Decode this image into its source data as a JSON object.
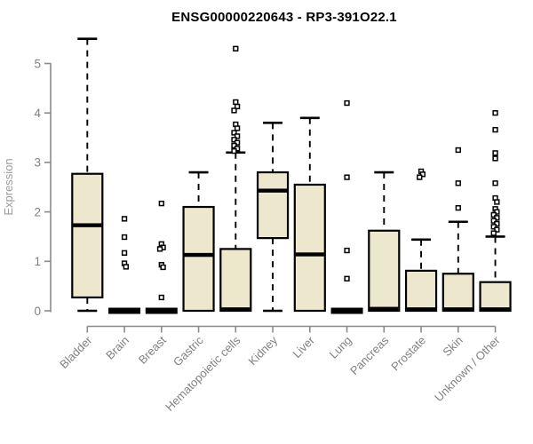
{
  "title": "ENSG00000220643 - RP3-391O22.1",
  "colors": {
    "box_fill": "#EDE7CE",
    "box_border": "#000000",
    "median": "#000000",
    "whisker": "#000000",
    "outlier_stroke": "#000000",
    "outlier_fill": "#FFFFFF",
    "axis": "#8A8A8A",
    "tick_label": "#808080",
    "axis_title": "#9A9A9A",
    "title": "#000000",
    "background": "#FFFFFF"
  },
  "chart_data": {
    "type": "boxplot",
    "title": "ENSG00000220643 - RP3-391O22.1",
    "xlabel": "",
    "ylabel": "Expression",
    "ylim": [
      0,
      5.6
    ],
    "yticks": [
      0,
      1,
      2,
      3,
      4,
      5
    ],
    "grid": false,
    "legend": null,
    "categories": [
      "Bladder",
      "Brain",
      "Breast",
      "Gastric",
      "Hematopoietic cells",
      "Kidney",
      "Liver",
      "Lung",
      "Pancreas",
      "Prostate",
      "Skin",
      "Unknown / Other"
    ],
    "series": [
      {
        "category": "Bladder",
        "whisker_low": 0,
        "q1": 0.27,
        "median": 1.73,
        "q3": 2.77,
        "whisker_high": 5.5,
        "outliers": []
      },
      {
        "category": "Brain",
        "whisker_low": 0,
        "q1": 0,
        "median": 0,
        "q3": 0,
        "whisker_high": 0,
        "outliers": [
          1.86,
          1.49,
          1.17,
          0.96,
          0.89
        ]
      },
      {
        "category": "Breast",
        "whisker_low": 0,
        "q1": 0,
        "median": 0,
        "q3": 0,
        "whisker_high": 0,
        "outliers": [
          2.17,
          1.35,
          1.28,
          1.25,
          0.93,
          0.88,
          0.27
        ]
      },
      {
        "category": "Gastric",
        "whisker_low": 0,
        "q1": 0,
        "median": 1.13,
        "q3": 2.1,
        "whisker_high": 2.8,
        "outliers": []
      },
      {
        "category": "Hematopoietic cells",
        "whisker_low": 0,
        "q1": 0,
        "median": 0.03,
        "q3": 1.25,
        "whisker_high": 3.2,
        "outliers": [
          5.3,
          4.22,
          4.13,
          4.05,
          3.77,
          3.69,
          3.6,
          3.53,
          3.46,
          3.4,
          3.34,
          3.28,
          3.23
        ]
      },
      {
        "category": "Kidney",
        "whisker_low": 0,
        "q1": 1.47,
        "median": 2.43,
        "q3": 2.8,
        "whisker_high": 3.8,
        "outliers": []
      },
      {
        "category": "Liver",
        "whisker_low": 0,
        "q1": 0,
        "median": 1.14,
        "q3": 2.55,
        "whisker_high": 3.9,
        "outliers": []
      },
      {
        "category": "Lung",
        "whisker_low": 0,
        "q1": 0,
        "median": 0,
        "q3": 0,
        "whisker_high": 0,
        "outliers": [
          4.2,
          2.7,
          1.22,
          0.65
        ]
      },
      {
        "category": "Pancreas",
        "whisker_low": 0,
        "q1": 0,
        "median": 0.04,
        "q3": 1.62,
        "whisker_high": 2.8,
        "outliers": []
      },
      {
        "category": "Prostate",
        "whisker_low": 0,
        "q1": 0,
        "median": 0.03,
        "q3": 0.81,
        "whisker_high": 1.44,
        "outliers": [
          2.82,
          2.76,
          2.7
        ]
      },
      {
        "category": "Skin",
        "whisker_low": 0,
        "q1": 0,
        "median": 0.03,
        "q3": 0.75,
        "whisker_high": 1.8,
        "outliers": [
          3.25,
          2.58,
          2.08
        ]
      },
      {
        "category": "Unknown / Other",
        "whisker_low": 0,
        "q1": 0,
        "median": 0.03,
        "q3": 0.58,
        "whisker_high": 1.5,
        "outliers": [
          4.0,
          3.66,
          3.19,
          3.08,
          2.58,
          2.28,
          2.2,
          2.06,
          2.0,
          1.94,
          1.88,
          1.82,
          1.76,
          1.7,
          1.64,
          1.57
        ]
      }
    ]
  }
}
